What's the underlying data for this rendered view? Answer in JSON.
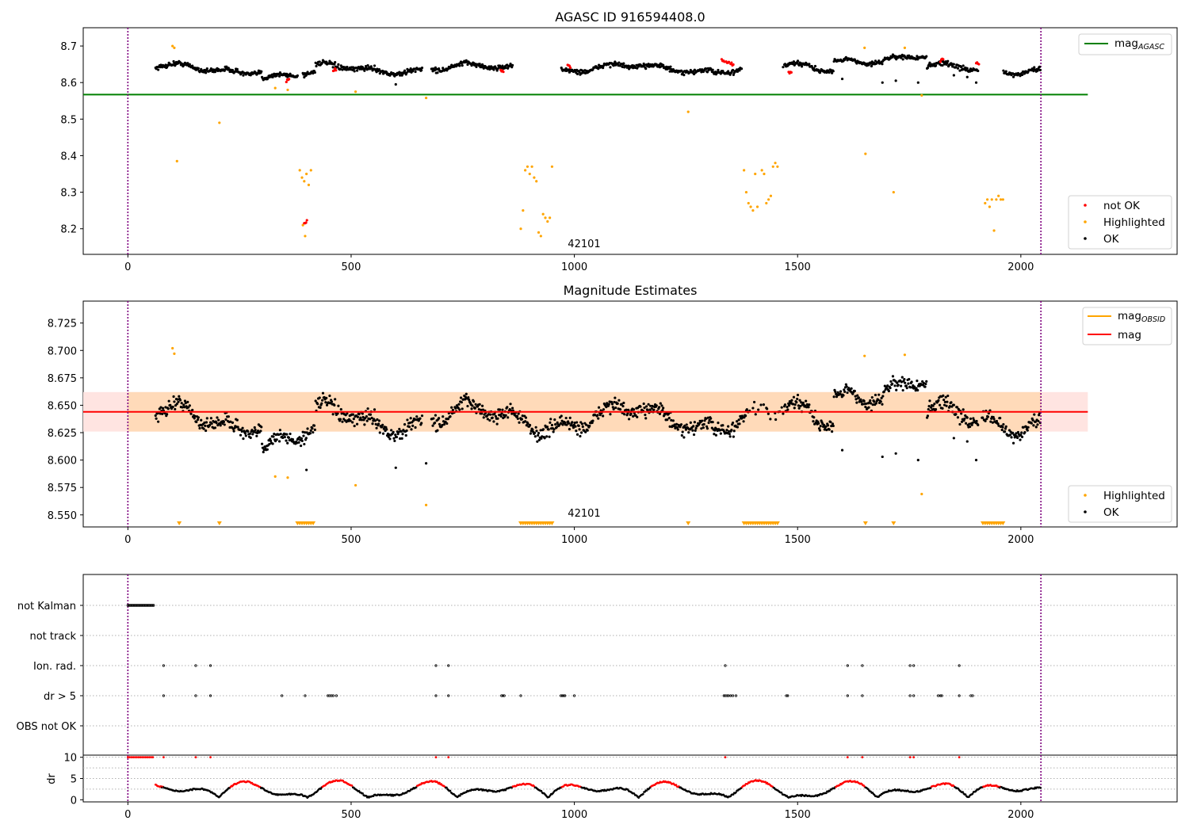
{
  "colors": {
    "ok": "#000000",
    "highlighted": "#ffa500",
    "not_ok": "#ff0000",
    "mag_agasc_line": "#008000",
    "mag_line": "#ff0000",
    "mag_obsid_line": "#ffa500",
    "band_obs": "#ffdab9",
    "band_outer": "#ffe4e1",
    "obs_boundary": "#800080",
    "grid": "#b0b0b0"
  },
  "chart_data": [
    {
      "id": "agasc",
      "type": "scatter",
      "title": "AGASC ID 916594408.0",
      "xlim": [
        -100,
        2350
      ],
      "ylim": [
        8.13,
        8.75
      ],
      "yticks": [
        8.2,
        8.3,
        8.4,
        8.5,
        8.6,
        8.7
      ],
      "ytick_labels": [
        "8.2",
        "8.3",
        "8.4",
        "8.5",
        "8.6",
        "8.7"
      ],
      "xticks": [
        0,
        500,
        1000,
        1500,
        2000
      ],
      "xtick_labels": [
        "0",
        "500",
        "1000",
        "1500",
        "2000"
      ],
      "hline": {
        "name": "mag_AGASC",
        "value": 8.567,
        "x_range": [
          -100,
          2150
        ]
      },
      "obs_boundaries": [
        0,
        2045
      ],
      "obs_label": {
        "text": "42101",
        "x": 1022,
        "y": 8.16
      },
      "legend_top": {
        "entry": "mag",
        "sub": "AGASC"
      },
      "legend_bottom": [
        "not OK",
        "Highlighted",
        "OK"
      ],
      "highlighted_points": [
        [
          110,
          8.385
        ],
        [
          205,
          8.49
        ],
        [
          330,
          8.585
        ],
        [
          358,
          8.58
        ],
        [
          510,
          8.575
        ],
        [
          668,
          8.558
        ],
        [
          1255,
          8.52
        ],
        [
          1652,
          8.405
        ],
        [
          1715,
          8.3
        ],
        [
          1778,
          8.565
        ],
        [
          385,
          8.36
        ],
        [
          390,
          8.34
        ],
        [
          395,
          8.33
        ],
        [
          400,
          8.35
        ],
        [
          405,
          8.32
        ],
        [
          410,
          8.36
        ],
        [
          392,
          8.21
        ],
        [
          397,
          8.18
        ],
        [
          880,
          8.2
        ],
        [
          885,
          8.25
        ],
        [
          890,
          8.36
        ],
        [
          895,
          8.37
        ],
        [
          900,
          8.35
        ],
        [
          905,
          8.37
        ],
        [
          910,
          8.34
        ],
        [
          915,
          8.33
        ],
        [
          920,
          8.19
        ],
        [
          925,
          8.18
        ],
        [
          930,
          8.24
        ],
        [
          935,
          8.23
        ],
        [
          940,
          8.22
        ],
        [
          945,
          8.23
        ],
        [
          950,
          8.37
        ],
        [
          1380,
          8.36
        ],
        [
          1385,
          8.3
        ],
        [
          1390,
          8.27
        ],
        [
          1395,
          8.26
        ],
        [
          1400,
          8.25
        ],
        [
          1405,
          8.35
        ],
        [
          1410,
          8.26
        ],
        [
          1420,
          8.36
        ],
        [
          1425,
          8.35
        ],
        [
          1430,
          8.27
        ],
        [
          1435,
          8.28
        ],
        [
          1440,
          8.29
        ],
        [
          1445,
          8.37
        ],
        [
          1450,
          8.38
        ],
        [
          1455,
          8.37
        ],
        [
          1920,
          8.27
        ],
        [
          1925,
          8.28
        ],
        [
          1930,
          8.26
        ],
        [
          1935,
          8.28
        ],
        [
          1940,
          8.195
        ],
        [
          1945,
          8.28
        ],
        [
          1950,
          8.29
        ],
        [
          1955,
          8.28
        ],
        [
          1960,
          8.28
        ],
        [
          100,
          8.7
        ],
        [
          104,
          8.695
        ],
        [
          1650,
          8.695
        ],
        [
          1740,
          8.695
        ]
      ],
      "not_ok_points": [
        [
          395,
          8.22
        ],
        [
          355,
          8.605
        ],
        [
          460,
          8.635
        ],
        [
          835,
          8.63
        ],
        [
          985,
          8.645
        ],
        [
          1330,
          8.66
        ],
        [
          1340,
          8.655
        ],
        [
          1350,
          8.65
        ],
        [
          1480,
          8.63
        ],
        [
          1820,
          8.66
        ],
        [
          1900,
          8.655
        ]
      ],
      "ok_outliers": [
        [
          1600,
          8.61
        ],
        [
          1690,
          8.6
        ],
        [
          1720,
          8.605
        ],
        [
          1770,
          8.6
        ],
        [
          1850,
          8.62
        ],
        [
          1880,
          8.615
        ],
        [
          1900,
          8.6
        ],
        [
          600,
          8.595
        ]
      ]
    },
    {
      "id": "mag_estimates",
      "type": "scatter",
      "title": "Magnitude Estimates",
      "xlim": [
        -100,
        2350
      ],
      "ylim": [
        8.539,
        8.745
      ],
      "yticks": [
        8.55,
        8.575,
        8.6,
        8.625,
        8.65,
        8.675,
        8.7,
        8.725
      ],
      "ytick_labels": [
        "8.550",
        "8.575",
        "8.600",
        "8.625",
        "8.650",
        "8.675",
        "8.700",
        "8.725"
      ],
      "xticks": [
        0,
        500,
        1000,
        1500,
        2000
      ],
      "xtick_labels": [
        "0",
        "500",
        "1000",
        "1500",
        "2000"
      ],
      "mag_line": 8.644,
      "band_obs": [
        8.626,
        8.662
      ],
      "band_outer": [
        8.626,
        8.662
      ],
      "band_x_range": [
        -100,
        2150
      ],
      "obs_boundaries": [
        0,
        2045
      ],
      "obs_label": {
        "text": "42101",
        "x": 1022,
        "y": 8.552
      },
      "legend_top": [
        {
          "entry": "mag",
          "sub": "OBSID"
        },
        {
          "entry": "mag"
        }
      ],
      "legend_bottom": [
        "Highlighted",
        "OK"
      ],
      "highlighted_points": [
        [
          100,
          8.702
        ],
        [
          104,
          8.697
        ],
        [
          330,
          8.585
        ],
        [
          358,
          8.584
        ],
        [
          510,
          8.577
        ],
        [
          668,
          8.559
        ],
        [
          1650,
          8.695
        ],
        [
          1740,
          8.696
        ],
        [
          1778,
          8.569
        ]
      ],
      "clipped_markers_x": [
        115,
        205,
        380,
        385,
        390,
        395,
        400,
        405,
        410,
        415,
        880,
        885,
        890,
        895,
        900,
        905,
        910,
        915,
        920,
        925,
        930,
        935,
        940,
        945,
        950,
        1255,
        1380,
        1385,
        1390,
        1395,
        1400,
        1405,
        1410,
        1415,
        1420,
        1425,
        1430,
        1435,
        1440,
        1445,
        1450,
        1455,
        1652,
        1715,
        1915,
        1920,
        1925,
        1930,
        1935,
        1940,
        1945,
        1950,
        1955,
        1960
      ],
      "ok_outliers": [
        [
          1600,
          8.609
        ],
        [
          1690,
          8.603
        ],
        [
          1720,
          8.606
        ],
        [
          1770,
          8.6
        ],
        [
          1850,
          8.62
        ],
        [
          1880,
          8.617
        ],
        [
          1900,
          8.6
        ],
        [
          600,
          8.593
        ],
        [
          668,
          8.597
        ],
        [
          400,
          8.591
        ]
      ]
    },
    {
      "id": "flags",
      "type": "scatter",
      "xlim": [
        -100,
        2350
      ],
      "row_labels": [
        "not Kalman",
        "not track",
        "Ion. rad.",
        "dr > 5",
        "OBS not OK"
      ],
      "obs_boundaries": [
        0,
        2045
      ],
      "not_kalman_range": [
        0,
        58
      ],
      "ion_rad_x": [
        80,
        152,
        185,
        690,
        718,
        1338,
        1612,
        1645,
        1752,
        1760,
        1862
      ],
      "dr5_x": [
        80,
        152,
        185,
        345,
        397,
        448,
        452,
        456,
        460,
        467,
        690,
        718,
        837,
        840,
        843,
        880,
        970,
        973,
        976,
        979,
        1000,
        1335,
        1338,
        1342,
        1345,
        1350,
        1355,
        1362,
        1475,
        1478,
        1612,
        1645,
        1752,
        1760,
        1815,
        1820,
        1823,
        1862,
        1888,
        1892
      ]
    },
    {
      "id": "dr",
      "type": "scatter",
      "ylabel": "dr",
      "xlim": [
        -100,
        2350
      ],
      "ylim": [
        -0.5,
        10.5
      ],
      "yticks": [
        0,
        5,
        10
      ],
      "ytick_labels": [
        "0",
        "5",
        "10"
      ],
      "xticks": [
        0,
        500,
        1000,
        1500,
        2000
      ],
      "xtick_labels": [
        "0",
        "500",
        "1000",
        "1500",
        "2000"
      ],
      "obs_boundaries": [
        0,
        2045
      ],
      "high_dr_x": [
        0,
        4,
        8,
        12,
        16,
        20,
        24,
        28,
        32,
        36,
        40,
        44,
        48,
        52,
        56,
        80,
        152,
        185,
        690,
        718,
        1338,
        1612,
        1645,
        1752,
        1760,
        1862
      ]
    }
  ]
}
